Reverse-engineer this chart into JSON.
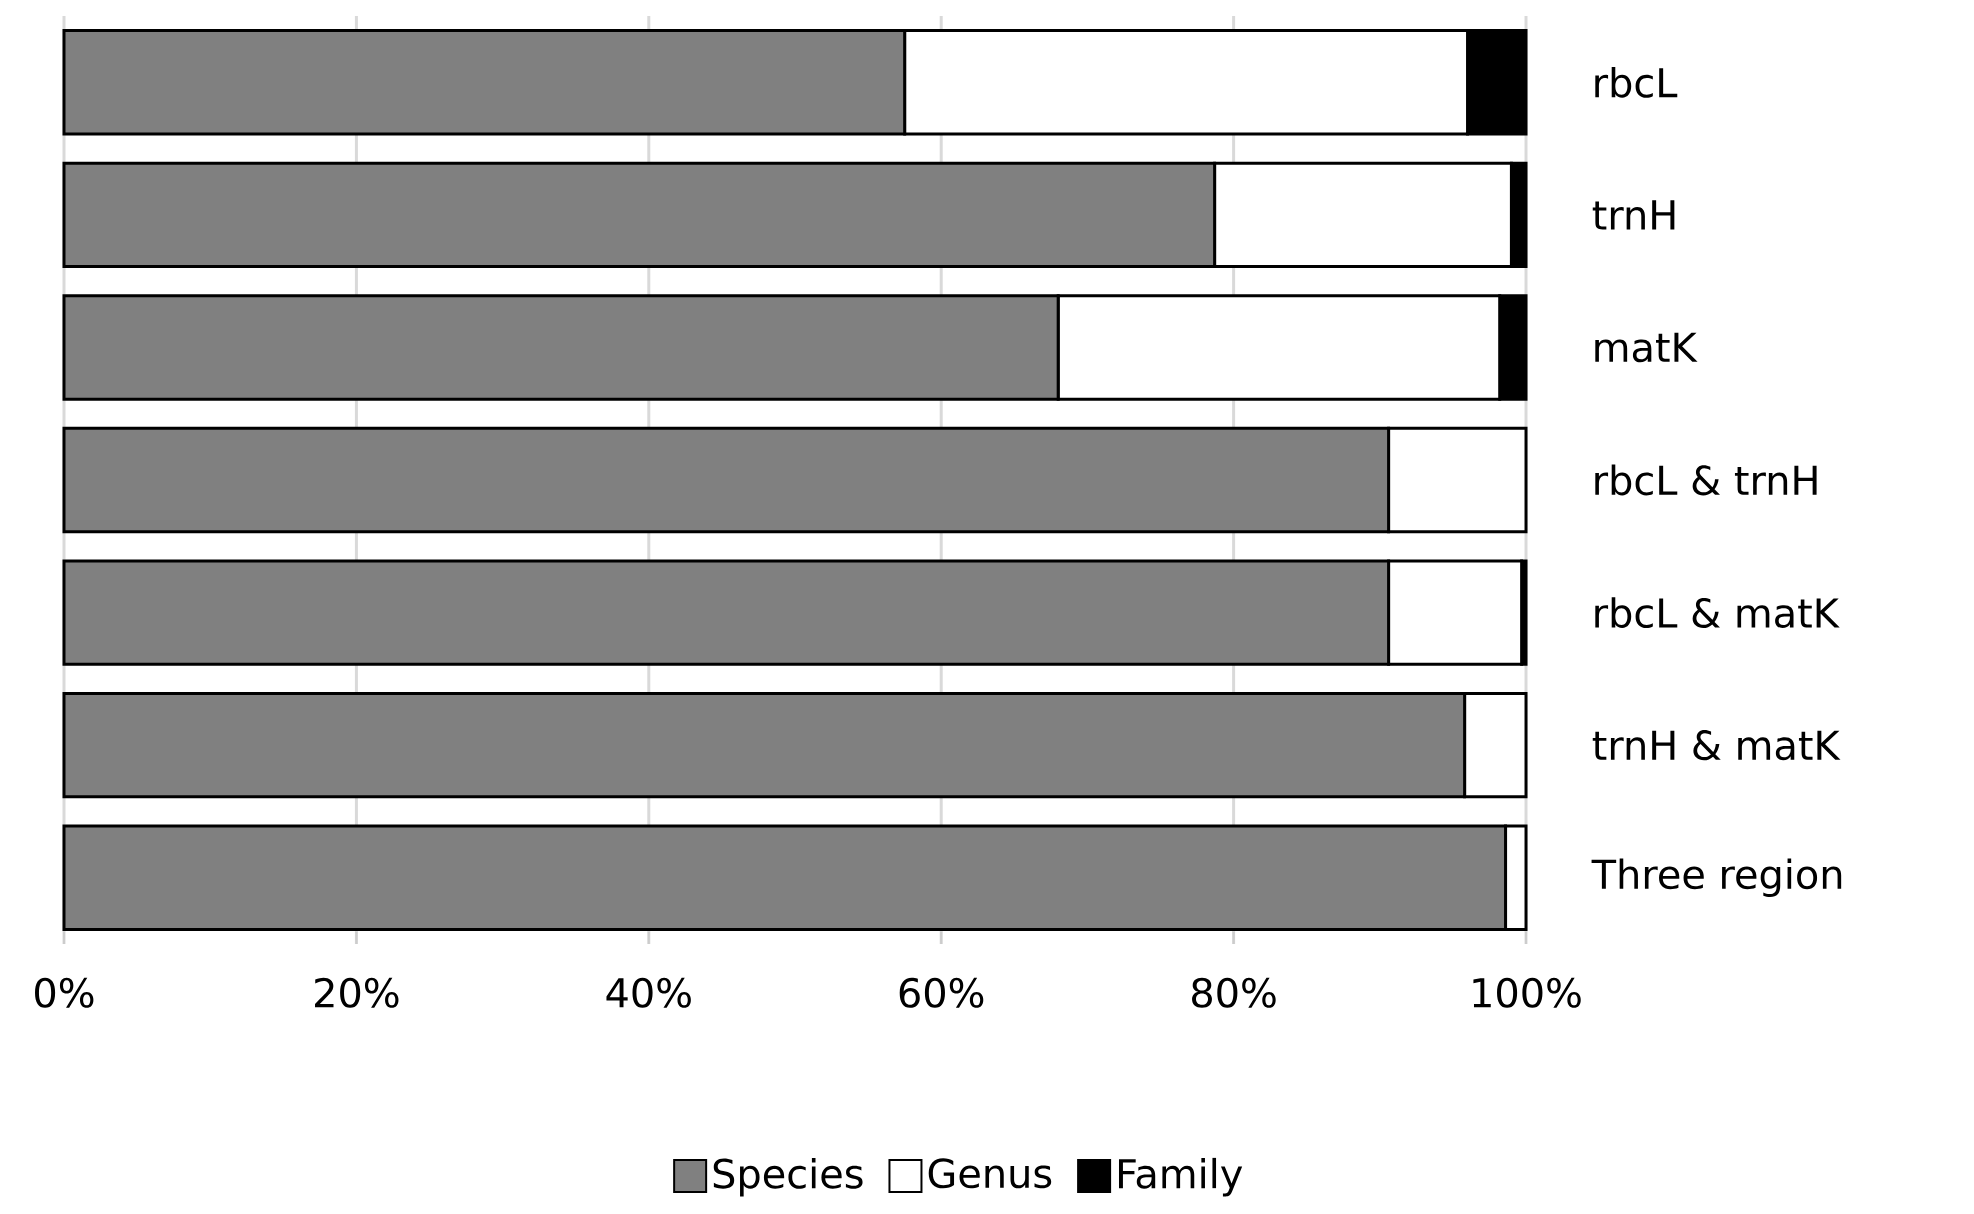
{
  "chart_data": {
    "type": "bar",
    "orientation": "horizontal",
    "stacked": true,
    "categories": [
      "rbcL",
      "trnH",
      "matK",
      "rbcL & trnH",
      "rbcL & matK",
      "trnH & matK",
      "Three region"
    ],
    "series": [
      {
        "name": "Species",
        "color": "#808080",
        "values": [
          57.5,
          78.7,
          68.0,
          90.6,
          90.6,
          95.8,
          98.6
        ]
      },
      {
        "name": "Genus",
        "color": "#ffffff",
        "values": [
          38.5,
          20.3,
          30.2,
          9.4,
          9.1,
          4.2,
          1.4
        ]
      },
      {
        "name": "Family",
        "color": "#000000",
        "values": [
          4.0,
          1.0,
          1.8,
          0,
          0.3,
          0,
          0
        ]
      }
    ],
    "xlim": [
      0,
      100
    ],
    "xticks": [
      {
        "value": 0,
        "label": "0%"
      },
      {
        "value": 20,
        "label": "20%"
      },
      {
        "value": 40,
        "label": "40%"
      },
      {
        "value": 60,
        "label": "60%"
      },
      {
        "value": 80,
        "label": "80%"
      },
      {
        "value": 100,
        "label": "100%"
      }
    ],
    "grid": "x",
    "legend": "bottom"
  }
}
